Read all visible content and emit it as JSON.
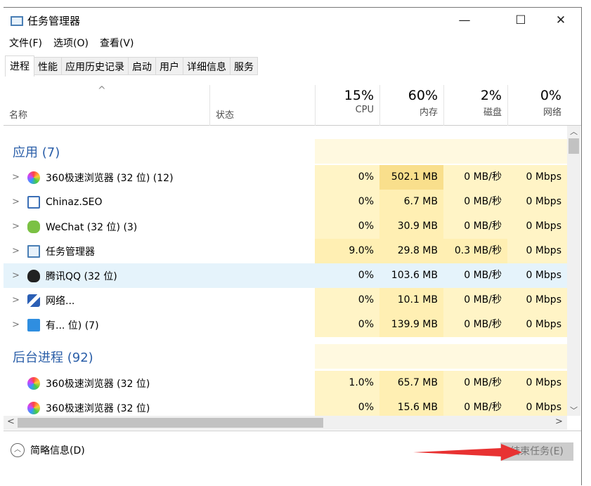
{
  "window": {
    "title": "任务管理器",
    "minimize": "—",
    "maximize": "☐",
    "close": "✕"
  },
  "menu": [
    "文件(F)",
    "选项(O)",
    "查看(V)"
  ],
  "tabs": [
    "进程",
    "性能",
    "应用历史记录",
    "启动",
    "用户",
    "详细信息",
    "服务"
  ],
  "header": {
    "name": "名称",
    "status": "状态",
    "cpu_pct": "15%",
    "cpu": "CPU",
    "mem_pct": "60%",
    "mem": "内存",
    "disk_pct": "2%",
    "disk": "磁盘",
    "net_pct": "0%",
    "net": "网络"
  },
  "groups": {
    "apps": "应用 (7)",
    "background": "后台进程 (92)"
  },
  "apps": [
    {
      "name": "360极速浏览器 (32 位) (12)",
      "cpu": "0%",
      "mem": "502.1 MB",
      "disk": "0 MB/秒",
      "net": "0 Mbps",
      "icon": "360-browser-icon"
    },
    {
      "name": "Chinaz.SEO",
      "cpu": "0%",
      "mem": "6.7 MB",
      "disk": "0 MB/秒",
      "net": "0 Mbps",
      "icon": "app-window-icon"
    },
    {
      "name": "WeChat (32 位) (3)",
      "cpu": "0%",
      "mem": "30.9 MB",
      "disk": "0 MB/秒",
      "net": "0 Mbps",
      "icon": "wechat-icon"
    },
    {
      "name": "任务管理器",
      "cpu": "9.0%",
      "mem": "29.8 MB",
      "disk": "0.3 MB/秒",
      "net": "0 Mbps",
      "icon": "task-manager-icon"
    },
    {
      "name": "腾讯QQ (32 位)",
      "cpu": "0%",
      "mem": "103.6 MB",
      "disk": "0 MB/秒",
      "net": "0 Mbps",
      "icon": "qq-icon"
    },
    {
      "name": "网络...",
      "cpu": "0%",
      "mem": "10.1 MB",
      "disk": "0 MB/秒",
      "net": "0 Mbps",
      "icon": "pen-icon"
    },
    {
      "name": "有... 位) (7)",
      "cpu": "0%",
      "mem": "139.9 MB",
      "disk": "0 MB/秒",
      "net": "0 Mbps",
      "icon": "youdao-icon"
    }
  ],
  "background": [
    {
      "name": "360极速浏览器 (32 位)",
      "cpu": "1.0%",
      "mem": "65.7 MB",
      "disk": "0 MB/秒",
      "net": "0 Mbps",
      "icon": "360-browser-icon"
    },
    {
      "name": "360极速浏览器 (32 位)",
      "cpu": "0%",
      "mem": "15.6 MB",
      "disk": "0 MB/秒",
      "net": "0 Mbps",
      "icon": "360-browser-icon"
    }
  ],
  "footer": {
    "details": "简略信息(D)",
    "end_task": "结束任务(E)"
  },
  "colors": {
    "accent": "#2a5ea8",
    "cpu_heat": "#fff4c6",
    "mem_heat": "#ffefb3",
    "mem_high": "#f9df8c",
    "hover": "#e5f3fb",
    "arrow": "#e83232"
  }
}
